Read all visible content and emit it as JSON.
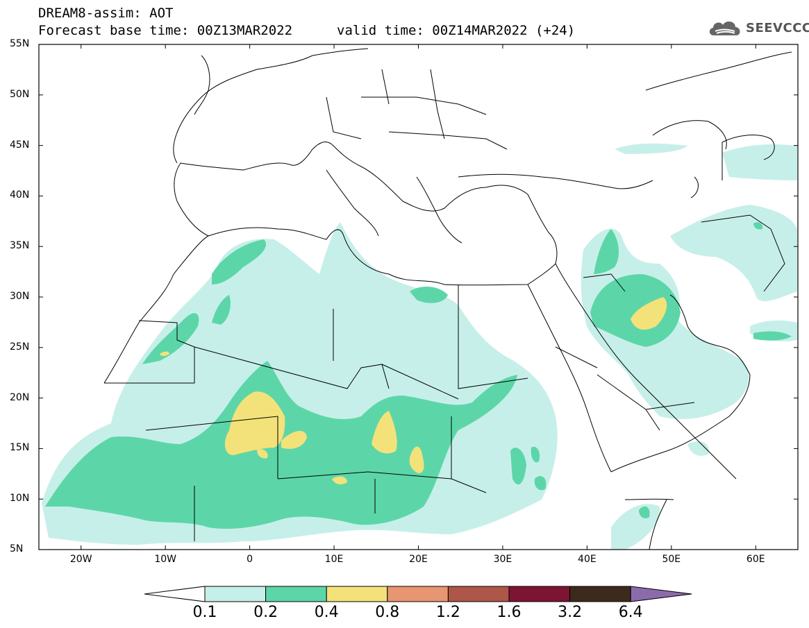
{
  "header": {
    "title_line1": "DREAM8-assim: AOT",
    "title_line2": "Forecast base time: 00Z13MAR2022",
    "valid_time": "valid time: 00Z14MAR2022 (+24)",
    "logo_text": "SEEVCCC"
  },
  "map": {
    "projection": "lat-lon",
    "lon_range": [
      -25,
      65
    ],
    "lat_range": [
      5,
      55
    ],
    "lat_ticks": [
      "55N",
      "50N",
      "45N",
      "40N",
      "35N",
      "30N",
      "25N",
      "20N",
      "15N",
      "10N",
      "5N"
    ],
    "lat_values": [
      55,
      50,
      45,
      40,
      35,
      30,
      25,
      20,
      15,
      10,
      5
    ],
    "lon_ticks": [
      "20W",
      "10W",
      "0",
      "10E",
      "20E",
      "30E",
      "40E",
      "50E",
      "60E"
    ],
    "lon_values": [
      -20,
      -10,
      0,
      10,
      20,
      30,
      40,
      50,
      60
    ]
  },
  "legend": {
    "levels": [
      "0.1",
      "0.2",
      "0.4",
      "0.8",
      "1.2",
      "1.6",
      "3.2",
      "6.4"
    ],
    "colors": [
      "#c7efe9",
      "#5cd6a8",
      "#f3e27a",
      "#e89571",
      "#ad5649",
      "#7e1434",
      "#3e2a1d",
      "#8c6bab"
    ],
    "under_color": "#ffffff"
  }
}
